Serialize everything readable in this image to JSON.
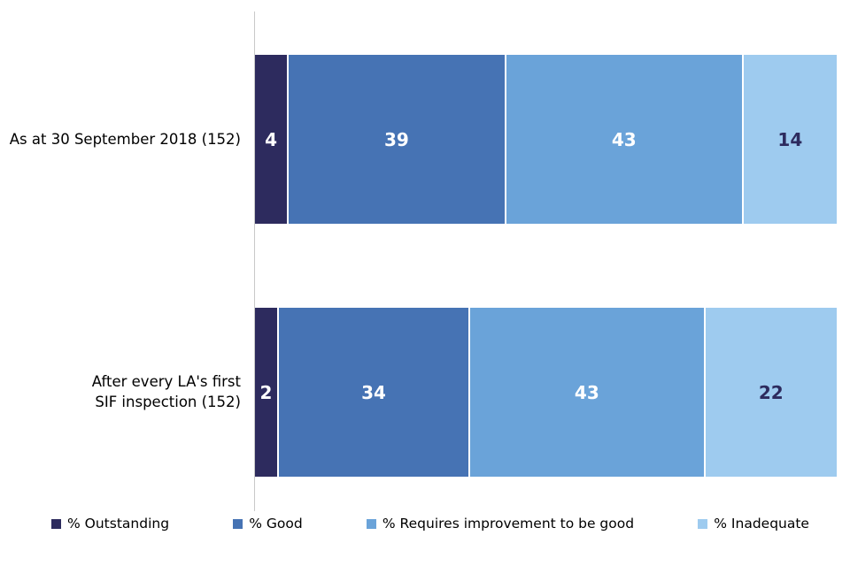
{
  "chart_data": {
    "type": "bar",
    "variant": "horizontal-stacked",
    "title": "",
    "xlabel": "",
    "ylabel": "",
    "xlim": [
      0,
      100
    ],
    "grid": false,
    "legend_position": "bottom",
    "background_color": "#FFFFFF",
    "axis_line_color": "#C9C9C9",
    "categories": [
      "As at 30 September 2018 (152)",
      "After every LA's first SIF inspection (152)"
    ],
    "category_label_lines": [
      [
        "As at 30 September 2018 (152)"
      ],
      [
        "After every LA's first",
        "SIF inspection (152)"
      ]
    ],
    "series": [
      {
        "name": "% Outstanding",
        "color": "#2D2B5E",
        "value_label_color": "#FFFFFF",
        "values": [
          4,
          2
        ]
      },
      {
        "name": "% Good",
        "color": "#4673B4",
        "value_label_color": "#FFFFFF",
        "values": [
          39,
          34
        ]
      },
      {
        "name": "% Requires improvement to be good",
        "color": "#6AA3D9",
        "value_label_color": "#FFFFFF",
        "values": [
          43,
          43
        ]
      },
      {
        "name": "% Inadequate",
        "color": "#9ECBEF",
        "value_label_color": "#2D2B5E",
        "values": [
          14,
          22
        ]
      }
    ]
  }
}
